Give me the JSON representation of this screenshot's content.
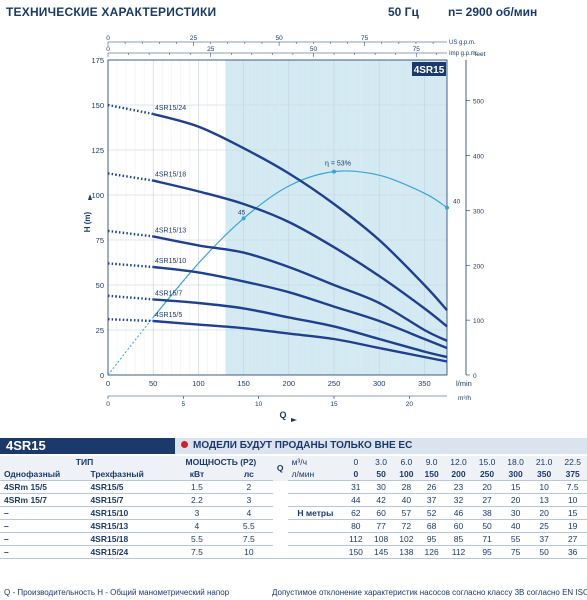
{
  "header": {
    "title": "ТЕХНИЧЕСКИЕ ХАРАКТЕРИСТИКИ",
    "frequency": "50 Гц",
    "speed": "n= 2900 об/мин"
  },
  "model_label": "4SR15",
  "notice": "МОДЕЛИ БУДУТ ПРОДАНЫ ТОЛЬКО ВНЕ ЕС",
  "chart_data": {
    "type": "line",
    "title": "4SR15",
    "xlabel": "Q",
    "ylabel": "H (m)",
    "y2label": "feet",
    "xunit_lpm": "l/min",
    "xunit_m3h": "m³/h",
    "xunit_usgpm": "US g.p.m.",
    "xunit_impgpm": "Imp g.p.m.",
    "xlim": [
      0,
      375
    ],
    "ylim": [
      0,
      175
    ],
    "x_ticks": [
      0,
      50,
      100,
      150,
      200,
      250,
      300,
      350
    ],
    "y_ticks": [
      0,
      25,
      50,
      75,
      100,
      125,
      150,
      175
    ],
    "feet_ticks": [
      0,
      100,
      200,
      300,
      400,
      500
    ],
    "m3h_ticks": [
      0,
      5,
      10,
      15,
      20
    ],
    "usgpm_ticks": [
      0,
      25,
      50,
      75
    ],
    "impgpm_ticks": [
      0,
      25,
      50,
      75
    ],
    "recommended_range": [
      130,
      375
    ],
    "series": [
      {
        "name": "4SR15/24",
        "x": [
          0,
          50,
          100,
          150,
          200,
          250,
          300,
          350,
          375
        ],
        "values": [
          150,
          145,
          138,
          126,
          112,
          95,
          75,
          50,
          36
        ]
      },
      {
        "name": "4SR15/18",
        "x": [
          0,
          50,
          100,
          150,
          200,
          250,
          300,
          350,
          375
        ],
        "values": [
          112,
          108,
          102,
          95,
          85,
          71,
          55,
          37,
          27
        ]
      },
      {
        "name": "4SR15/13",
        "x": [
          0,
          50,
          100,
          150,
          200,
          250,
          300,
          350,
          375
        ],
        "values": [
          80,
          77,
          72,
          68,
          60,
          50,
          40,
          25,
          19
        ]
      },
      {
        "name": "4SR15/10",
        "x": [
          0,
          50,
          100,
          150,
          200,
          250,
          300,
          350,
          375
        ],
        "values": [
          62,
          60,
          57,
          52,
          46,
          38,
          30,
          20,
          15
        ]
      },
      {
        "name": "4SR15/7",
        "x": [
          0,
          50,
          100,
          150,
          200,
          250,
          300,
          350,
          375
        ],
        "values": [
          44,
          42,
          40,
          37,
          32,
          27,
          20,
          13,
          10
        ]
      },
      {
        "name": "4SR15/5",
        "x": [
          0,
          50,
          100,
          150,
          200,
          250,
          300,
          350,
          375
        ],
        "values": [
          31,
          30,
          28,
          26,
          23,
          20,
          15,
          10,
          7.5
        ]
      }
    ],
    "efficiency": {
      "label": "η = 53%",
      "x": [
        0,
        50,
        100,
        150,
        200,
        250,
        300,
        350,
        375
      ],
      "values": [
        0,
        32,
        62,
        87,
        105,
        113,
        111,
        101,
        93
      ],
      "markers": [
        {
          "x": 150,
          "y": 87,
          "label": "45"
        },
        {
          "x": 250,
          "y": 113,
          "label": ""
        },
        {
          "x": 375,
          "y": 93,
          "label": "40"
        }
      ]
    }
  },
  "table": {
    "type_header": "ТИП",
    "power_header": "МОЩНОСТЬ (P2)",
    "single_phase": "Однофазный",
    "three_phase": "Трехфазный",
    "kw": "кВт",
    "hp": "лс",
    "q_label": "Q",
    "m3h_unit": "м³/ч",
    "lpm_unit": "л/мин",
    "h_label": "H метры",
    "m3h_values": [
      "0",
      "3.0",
      "6.0",
      "9.0",
      "12.0",
      "15.0",
      "18.0",
      "21.0",
      "22.5"
    ],
    "lpm_values": [
      "0",
      "50",
      "100",
      "150",
      "200",
      "250",
      "300",
      "350",
      "375"
    ],
    "rows": [
      {
        "single": "4SRm 15/5",
        "three": "4SR15/5",
        "kw": "1.5",
        "hp": "2",
        "h": [
          "31",
          "30",
          "28",
          "26",
          "23",
          "20",
          "15",
          "10",
          "7.5"
        ]
      },
      {
        "single": "4SRm 15/7",
        "three": "4SR15/7",
        "kw": "2.2",
        "hp": "3",
        "h": [
          "44",
          "42",
          "40",
          "37",
          "32",
          "27",
          "20",
          "13",
          "10"
        ]
      },
      {
        "single": "–",
        "three": "4SR15/10",
        "kw": "3",
        "hp": "4",
        "h": [
          "62",
          "60",
          "57",
          "52",
          "46",
          "38",
          "30",
          "20",
          "15"
        ]
      },
      {
        "single": "–",
        "three": "4SR15/13",
        "kw": "4",
        "hp": "5.5",
        "h": [
          "80",
          "77",
          "72",
          "68",
          "60",
          "50",
          "40",
          "25",
          "19"
        ]
      },
      {
        "single": "–",
        "three": "4SR15/18",
        "kw": "5.5",
        "hp": "7.5",
        "h": [
          "112",
          "108",
          "102",
          "95",
          "85",
          "71",
          "55",
          "37",
          "27"
        ]
      },
      {
        "single": "–",
        "three": "4SR15/24",
        "kw": "7.5",
        "hp": "10",
        "h": [
          "150",
          "145",
          "138",
          "126",
          "112",
          "95",
          "75",
          "50",
          "36"
        ]
      }
    ]
  },
  "footer": {
    "left": "Q - Производительность   H - Общий манометрический напор",
    "right": "Допустимое отклонение характеристик насосов согласно классу 3B согласно EN ISO 9906"
  },
  "colors": {
    "navy": "#1b3a6b",
    "curve": "#1f3f8f",
    "efficiency": "#3aa4d4",
    "band": "#d3eaf3",
    "notice_red": "#d0202a"
  }
}
